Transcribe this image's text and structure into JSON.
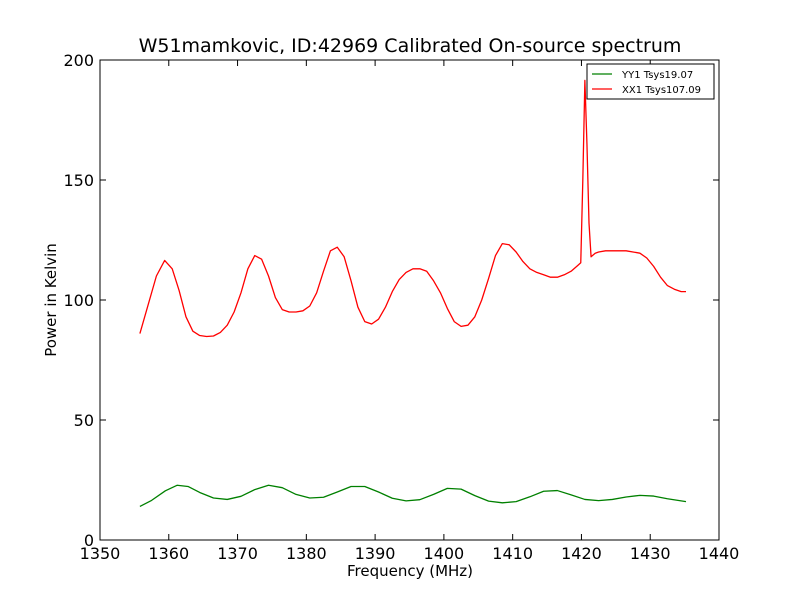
{
  "chart_data": {
    "type": "line",
    "title": "W51mamkovic, ID:42969 Calibrated On-source spectrum",
    "xlabel": "Frequency (MHz)",
    "ylabel": "Power in Kelvin",
    "xlim": [
      1350,
      1440
    ],
    "ylim": [
      0,
      200
    ],
    "xticks": [
      "1350",
      "1360",
      "1370",
      "1380",
      "1390",
      "1400",
      "1410",
      "1420",
      "1430",
      "1440"
    ],
    "yticks": [
      "0",
      "50",
      "100",
      "150",
      "200"
    ],
    "grid": false,
    "legend_position": "top-right",
    "series": [
      {
        "name": "YY1 Tsys19.07",
        "color": "#008000",
        "x": [
          1355.8,
          1357.5,
          1359.5,
          1361.2,
          1362.8,
          1364.5,
          1366.5,
          1368.5,
          1370.5,
          1372.5,
          1374.5,
          1376.5,
          1378.5,
          1380.5,
          1382.5,
          1384.5,
          1386.5,
          1388.5,
          1390.5,
          1392.5,
          1394.5,
          1396.5,
          1398.5,
          1400.5,
          1402.5,
          1404.5,
          1406.5,
          1408.5,
          1410.5,
          1412.5,
          1414.5,
          1416.5,
          1418.5,
          1420.5,
          1422.5,
          1424.5,
          1426.5,
          1428.5,
          1430.5,
          1432.5,
          1435.2
        ],
        "values": [
          14.0,
          16.5,
          20.5,
          22.8,
          22.3,
          19.8,
          17.5,
          16.9,
          18.2,
          21.0,
          22.8,
          21.8,
          19.0,
          17.5,
          17.8,
          20.0,
          22.3,
          22.3,
          20.0,
          17.4,
          16.3,
          16.8,
          19.0,
          21.5,
          21.2,
          18.5,
          16.2,
          15.5,
          16.0,
          18.0,
          20.3,
          20.6,
          18.8,
          16.9,
          16.4,
          16.9,
          17.9,
          18.6,
          18.3,
          17.2,
          16.0
        ]
      },
      {
        "name": "XX1 Tsys107.09",
        "color": "#ff0000",
        "x": [
          1355.8,
          1357.0,
          1358.2,
          1359.4,
          1360.5,
          1361.5,
          1362.5,
          1363.5,
          1364.5,
          1365.5,
          1366.5,
          1367.5,
          1368.5,
          1369.5,
          1370.5,
          1371.5,
          1372.5,
          1373.5,
          1374.5,
          1375.5,
          1376.5,
          1377.5,
          1378.5,
          1379.5,
          1380.5,
          1381.5,
          1382.5,
          1383.5,
          1384.5,
          1385.5,
          1386.5,
          1387.5,
          1388.5,
          1389.5,
          1390.5,
          1391.5,
          1392.5,
          1393.5,
          1394.5,
          1395.5,
          1396.5,
          1397.5,
          1398.5,
          1399.5,
          1400.5,
          1401.5,
          1402.5,
          1403.5,
          1404.5,
          1405.5,
          1406.5,
          1407.5,
          1408.5,
          1409.5,
          1410.5,
          1411.5,
          1412.5,
          1413.5,
          1414.5,
          1415.5,
          1416.5,
          1417.5,
          1418.5,
          1419.5,
          1419.9,
          1420.2,
          1420.5,
          1420.8,
          1421.1,
          1421.4,
          1422.0,
          1422.5,
          1423.5,
          1424.5,
          1425.5,
          1426.5,
          1427.5,
          1428.5,
          1429.5,
          1430.5,
          1431.5,
          1432.5,
          1433.5,
          1434.5,
          1435.2
        ],
        "values": [
          86.0,
          98.0,
          110.0,
          116.5,
          113.0,
          104.0,
          93.0,
          87.0,
          85.2,
          84.8,
          85.0,
          86.5,
          89.5,
          95.0,
          103.0,
          113.0,
          118.5,
          117.0,
          110.0,
          101.0,
          96.0,
          95.0,
          95.0,
          95.5,
          97.5,
          103.0,
          112.0,
          120.5,
          122.0,
          118.0,
          108.0,
          97.0,
          91.0,
          90.0,
          92.0,
          97.0,
          103.5,
          108.5,
          111.5,
          113.0,
          113.0,
          112.0,
          108.0,
          103.0,
          96.5,
          91.0,
          89.0,
          89.5,
          93.0,
          100.0,
          109.0,
          118.5,
          123.5,
          123.0,
          120.0,
          116.0,
          113.0,
          111.5,
          110.5,
          109.5,
          109.5,
          110.5,
          112.0,
          114.5,
          115.5,
          150.0,
          191.5,
          165.0,
          132.0,
          118.0,
          119.5,
          120.0,
          120.5,
          120.5,
          120.5,
          120.5,
          120.0,
          119.5,
          117.5,
          114.0,
          109.5,
          106.0,
          104.5,
          103.5,
          103.5
        ]
      }
    ]
  }
}
